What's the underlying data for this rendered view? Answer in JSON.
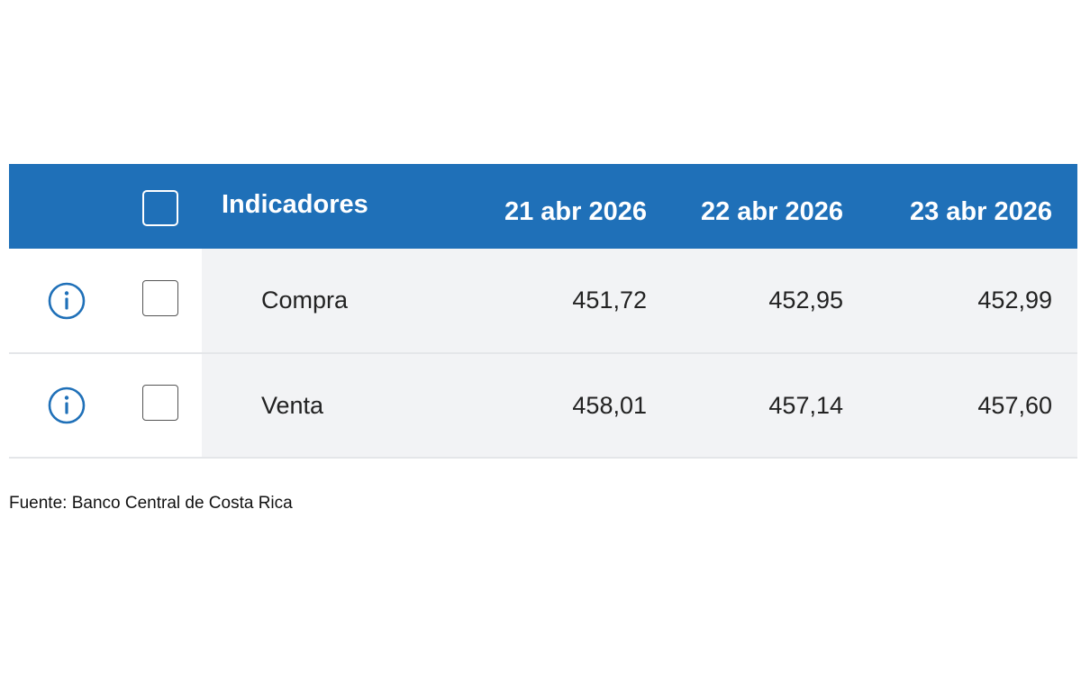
{
  "table": {
    "header": {
      "indicators_label": "Indicadores",
      "dates": [
        "21 abr 2026",
        "22 abr 2026",
        "23 abr 2026"
      ]
    },
    "rows": [
      {
        "name": "Compra",
        "values": [
          "451,72",
          "452,95",
          "452,99"
        ],
        "checked": false
      },
      {
        "name": "Venta",
        "values": [
          "458,01",
          "457,14",
          "457,60"
        ],
        "checked": false
      }
    ],
    "select_all_checked": false
  },
  "source_note": "Fuente: Banco Central de Costa Rica",
  "icons": {
    "row_icon": "info-icon",
    "checkbox": "checkbox"
  },
  "colors": {
    "header_bg": "#1f70b8",
    "header_text": "#ffffff",
    "row_bg": "#f2f3f5",
    "info_icon": "#1f70b8"
  }
}
